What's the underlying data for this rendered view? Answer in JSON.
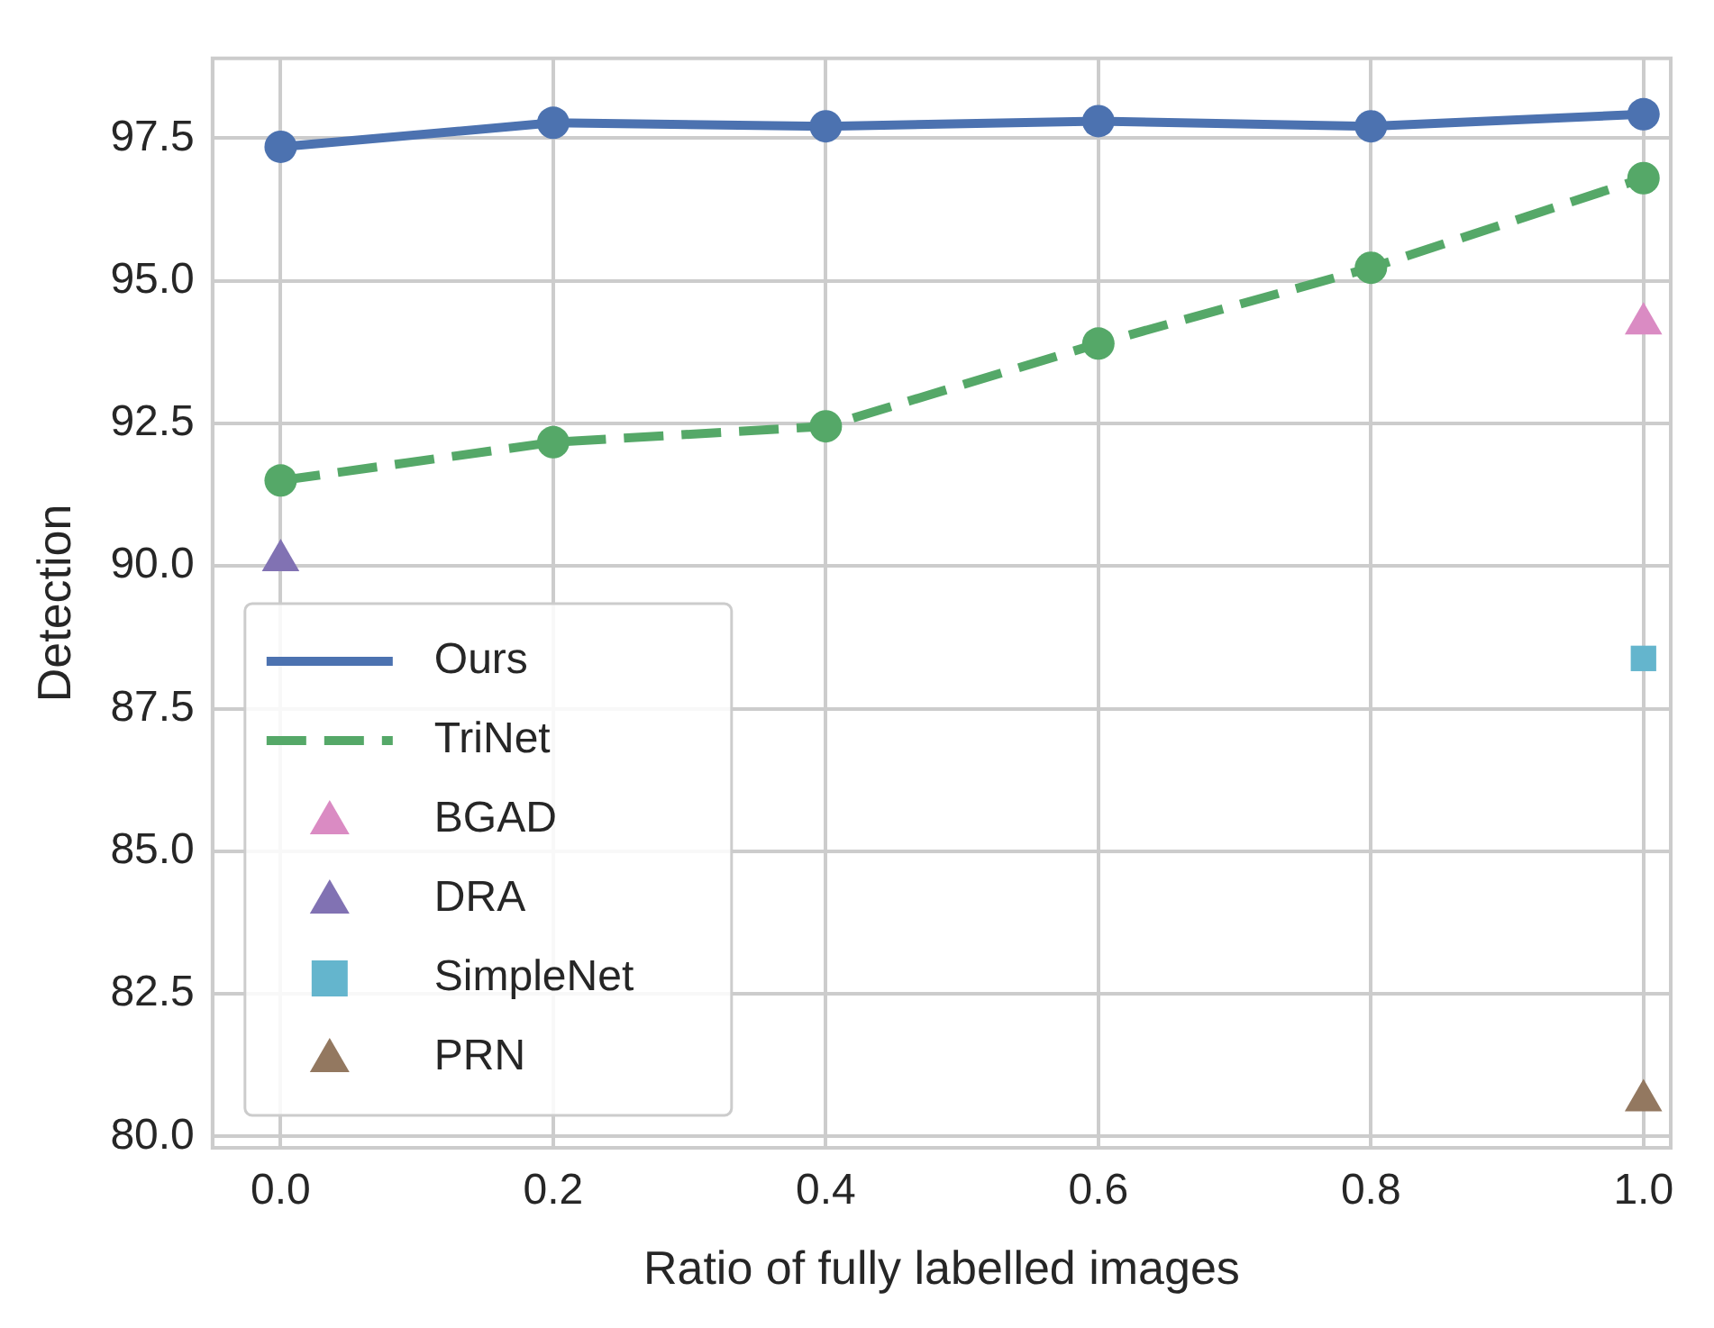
{
  "chart_data": {
    "type": "line",
    "xlabel": "Ratio of fully labelled images",
    "ylabel": "Detection",
    "xlim": [
      -0.05,
      1.02
    ],
    "xticks": [
      {
        "value": 0,
        "label": "0.0"
      },
      0.2,
      0.4,
      0.6,
      0.8,
      {
        "value": 1,
        "label": "1.0"
      }
    ],
    "ylim": [
      79.8,
      98.9
    ],
    "yticks": [
      {
        "value": 80,
        "label": "80.0"
      },
      82.5,
      {
        "value": 85,
        "label": "85.0"
      },
      87.5,
      {
        "value": 90,
        "label": "90.0"
      },
      92.5,
      {
        "value": 95,
        "label": "95.0"
      },
      97.5
    ],
    "grid": true,
    "legend": "bottom left",
    "series": [
      {
        "name": "Ours",
        "color": "#4c72b0",
        "marker": "circle",
        "line_style": "solid",
        "x": [
          0,
          0.2,
          0.4,
          0.6,
          0.8,
          1
        ],
        "values": [
          97.35,
          97.77,
          97.71,
          97.8,
          97.71,
          97.92
        ]
      },
      {
        "name": "TriNet",
        "color": "#55a868",
        "marker": "circle",
        "line_style": "dashed",
        "x": [
          0,
          0.2,
          0.4,
          0.6,
          0.8,
          1
        ],
        "values": [
          91.5,
          92.17,
          92.45,
          93.9,
          95.23,
          96.8
        ]
      },
      {
        "name": "BGAD",
        "type": "scatter",
        "color": "#da8bc3",
        "marker": "triangle",
        "x": [
          1
        ],
        "values": [
          94.25
        ]
      },
      {
        "name": "DRA",
        "type": "scatter",
        "color": "#8172b3",
        "marker": "triangle",
        "x": [
          0
        ],
        "values": [
          90.1
        ]
      },
      {
        "name": "SimpleNet",
        "type": "scatter",
        "color": "#64b5cd",
        "marker": "square",
        "x": [
          1
        ],
        "values": [
          88.38
        ]
      },
      {
        "name": "PRN",
        "type": "scatter",
        "color": "#937860",
        "marker": "triangle",
        "x": [
          1
        ],
        "values": [
          80.63
        ]
      }
    ]
  }
}
